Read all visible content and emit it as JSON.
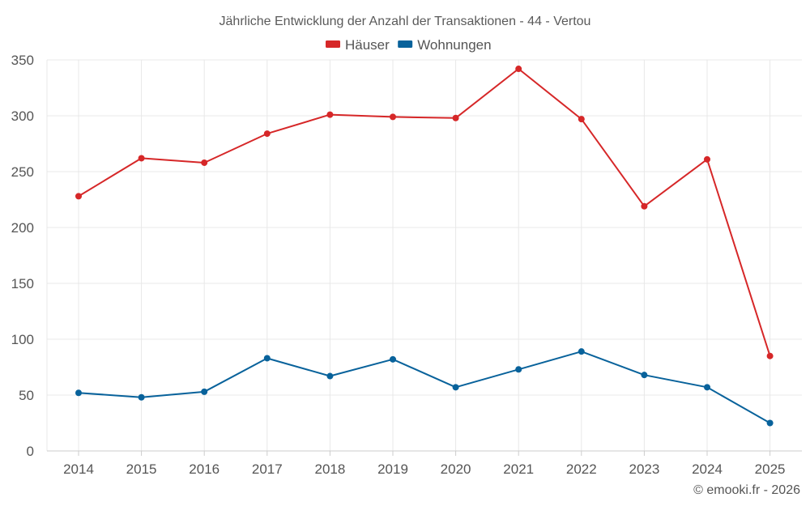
{
  "chart_data": {
    "type": "line",
    "title": "Jährliche Entwicklung der Anzahl der Transaktionen - 44 - Vertou",
    "xlabel": "",
    "ylabel": "",
    "categories": [
      "2014",
      "2015",
      "2016",
      "2017",
      "2018",
      "2019",
      "2020",
      "2021",
      "2022",
      "2023",
      "2024",
      "2025"
    ],
    "ylim": [
      0,
      350
    ],
    "yticks": [
      0,
      50,
      100,
      150,
      200,
      250,
      300,
      350
    ],
    "grid": true,
    "legend_position": "top-center",
    "series": [
      {
        "name": "Häuser",
        "color": "#d62728",
        "values": [
          228,
          262,
          258,
          284,
          301,
          299,
          298,
          342,
          297,
          219,
          261,
          85
        ]
      },
      {
        "name": "Wohnungen",
        "color": "#08629b",
        "values": [
          52,
          48,
          53,
          83,
          67,
          82,
          57,
          73,
          89,
          68,
          57,
          25
        ]
      }
    ]
  },
  "credit": "© emooki.fr - 2026"
}
